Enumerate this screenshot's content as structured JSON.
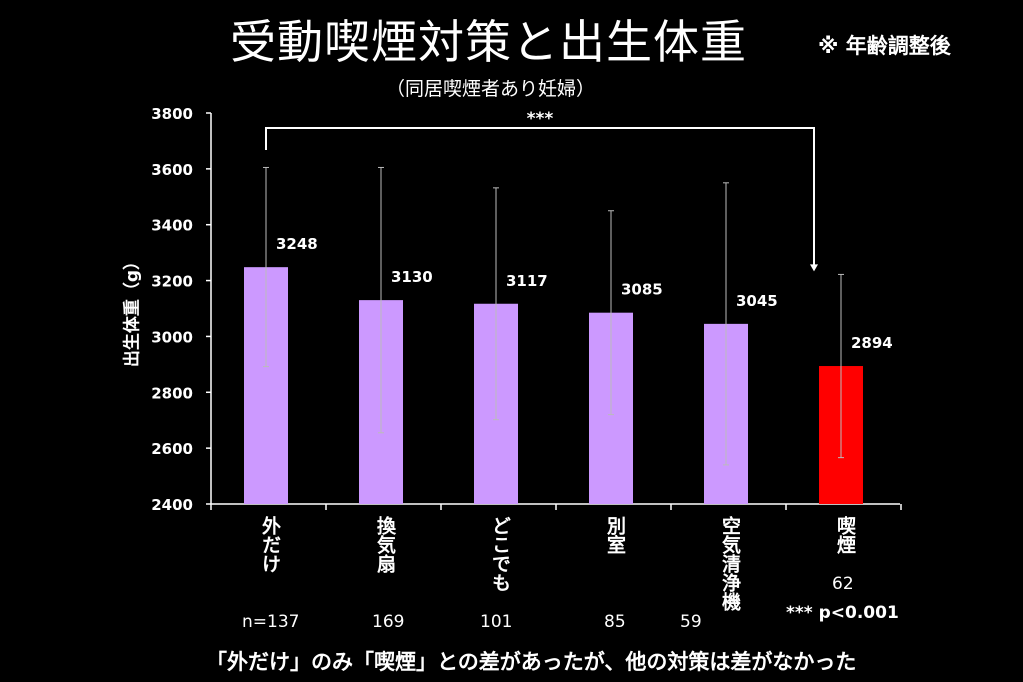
{
  "title": "受動喫煙対策と出生体重",
  "note": "※ 年齢調整後",
  "subtitle": "（同居喫煙者あり妊婦）",
  "footer": "「外だけ」のみ「喫煙」との差があったが、他の対策は差がなかった",
  "colors": {
    "background": "#000000",
    "bar": "#cc99ff",
    "bar_smoking": "#ff0000",
    "text": "#ffffff"
  },
  "chart_data": {
    "type": "bar",
    "title": "受動喫煙対策と出生体重",
    "subtitle": "（同居喫煙者あり妊婦）",
    "ylabel": "出生体重（g）",
    "ylim": [
      2400,
      3800
    ],
    "yticks": [
      "2400",
      "2600",
      "2800",
      "3000",
      "3200",
      "3400",
      "3600",
      "3800"
    ],
    "categories": [
      "外だけ",
      "換気扇",
      "どこでも",
      "別室",
      "空気清浄機",
      "喫煙"
    ],
    "values": [
      3248,
      3130,
      3117,
      3085,
      3045,
      2894
    ],
    "value_labels": [
      "3248",
      "3130",
      "3117",
      "3085",
      "3045",
      "2894"
    ],
    "error_high": [
      3605,
      3605,
      3532,
      3450,
      3550,
      3222
    ],
    "error_low": [
      2892,
      2655,
      2702,
      2720,
      2540,
      2566
    ],
    "n_labels": [
      "n=137",
      "169",
      "101",
      "85",
      "59",
      "62"
    ],
    "significance": {
      "between": [
        "外だけ",
        "喫煙"
      ],
      "label": "***"
    },
    "p_note": "***  p<0.001",
    "grid": false,
    "legend": "none"
  }
}
